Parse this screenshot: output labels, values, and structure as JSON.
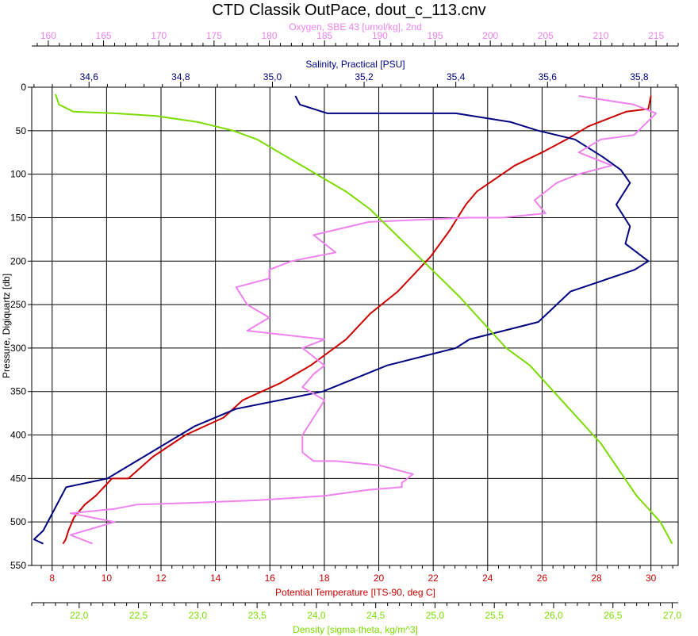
{
  "chart_data": {
    "type": "line",
    "title": "CTD Classik OutPace, dout_c_113.cnv",
    "grid": true,
    "y_axis": {
      "label": "Pressure, Digiquartz [db]",
      "range": [
        0,
        550
      ],
      "inverted": true,
      "ticks": [
        "0",
        "50",
        "100",
        "150",
        "200",
        "250",
        "300",
        "350",
        "400",
        "450",
        "500",
        "550"
      ]
    },
    "x_axes": [
      {
        "id": "oxygen",
        "label": "Oxygen, SBE 43 [umol/kg], 2nd",
        "position": "top-outer",
        "color": "#ee82ee",
        "range": [
          158.5,
          217
        ],
        "ticks": [
          "160",
          "165",
          "170",
          "175",
          "180",
          "185",
          "190",
          "195",
          "200",
          "205",
          "210",
          "215"
        ]
      },
      {
        "id": "salinity",
        "label": "Salinity, Practical [PSU]",
        "position": "top-inner",
        "color": "#000080",
        "range": [
          34.475,
          35.885
        ],
        "ticks": [
          "34,6",
          "34,8",
          "35,0",
          "35,2",
          "35,4",
          "35,6",
          "35,8"
        ]
      },
      {
        "id": "temperature",
        "label": "Potential Temperature [ITS-90, deg C]",
        "position": "bottom-inner",
        "color": "#cc0000",
        "range": [
          7.25,
          31.0
        ],
        "ticks": [
          "8",
          "10",
          "12",
          "14",
          "16",
          "18",
          "20",
          "22",
          "24",
          "26",
          "28",
          "30"
        ]
      },
      {
        "id": "density",
        "label": "Density [sigma-theta, kg/m^3]",
        "position": "bottom-outer",
        "color": "#7cdc00",
        "range": [
          21.6,
          27.05
        ],
        "ticks": [
          "22,0",
          "22,5",
          "23,0",
          "23,5",
          "24,0",
          "24,5",
          "25,0",
          "25,5",
          "26,0",
          "26,5",
          "27,0"
        ]
      }
    ],
    "series": [
      {
        "name": "Potential Temperature",
        "axis": "temperature",
        "color": "#cc0000",
        "x": [
          30.0,
          29.9,
          29.1,
          27.7,
          26.9,
          26.0,
          25.0,
          24.3,
          23.6,
          23.2,
          22.6,
          21.9,
          20.7,
          19.7,
          18.8,
          17.5,
          16.4,
          15.0,
          14.3,
          12.9,
          11.7,
          10.8,
          10.2,
          9.6,
          9.2,
          8.8,
          8.6,
          8.5,
          8.4,
          8.4
        ],
        "y": [
          10,
          25,
          28,
          45,
          60,
          75,
          90,
          105,
          120,
          135,
          165,
          195,
          235,
          260,
          290,
          320,
          340,
          360,
          380,
          400,
          425,
          450,
          450,
          470,
          480,
          495,
          510,
          520,
          525,
          525
        ]
      },
      {
        "name": "Salinity",
        "axis": "salinity",
        "color": "#000080",
        "x": [
          35.05,
          35.06,
          35.12,
          35.4,
          35.52,
          35.58,
          35.66,
          35.72,
          35.76,
          35.78,
          35.75,
          35.78,
          35.77,
          35.82,
          35.79,
          35.65,
          35.58,
          35.43,
          35.4,
          35.25,
          35.11,
          34.92,
          34.83,
          34.64,
          34.55,
          34.52,
          34.5,
          34.48,
          34.5
        ],
        "y": [
          10,
          20,
          30,
          30,
          40,
          50,
          60,
          80,
          95,
          110,
          135,
          160,
          180,
          200,
          210,
          235,
          270,
          290,
          300,
          320,
          350,
          370,
          390,
          450,
          460,
          490,
          510,
          520,
          525
        ]
      },
      {
        "name": "Oxygen",
        "axis": "oxygen",
        "color": "#ee82ee",
        "x": [
          208,
          213,
          215,
          213,
          210,
          208,
          211,
          208,
          206,
          204,
          205,
          201,
          198,
          189,
          184,
          186,
          182,
          180,
          180,
          177,
          178,
          180,
          178,
          185,
          183,
          185,
          184,
          183,
          185,
          184,
          183,
          183,
          184,
          186,
          190,
          193,
          192,
          192,
          189,
          185,
          179,
          173,
          168,
          166,
          162,
          166,
          162,
          164
        ],
        "y": [
          10,
          20,
          30,
          55,
          60,
          75,
          90,
          100,
          110,
          130,
          145,
          150,
          150,
          155,
          170,
          190,
          200,
          210,
          220,
          230,
          250,
          265,
          280,
          290,
          300,
          320,
          330,
          345,
          360,
          380,
          400,
          420,
          430,
          430,
          435,
          445,
          455,
          460,
          463,
          470,
          475,
          478,
          480,
          485,
          490,
          500,
          515,
          525
        ]
      },
      {
        "name": "Density",
        "axis": "density",
        "color": "#7cdc00",
        "x": [
          21.8,
          21.83,
          21.95,
          22.3,
          22.65,
          23.0,
          23.3,
          23.5,
          23.75,
          24.0,
          24.25,
          24.45,
          24.6,
          24.9,
          25.05,
          25.2,
          25.4,
          25.6,
          25.8,
          26.0,
          26.2,
          26.4,
          26.55,
          26.7,
          26.9,
          27.0
        ],
        "y": [
          8,
          20,
          28,
          30,
          33,
          40,
          50,
          60,
          80,
          100,
          120,
          140,
          160,
          200,
          220,
          240,
          270,
          300,
          320,
          350,
          380,
          410,
          440,
          470,
          500,
          525
        ]
      }
    ]
  }
}
